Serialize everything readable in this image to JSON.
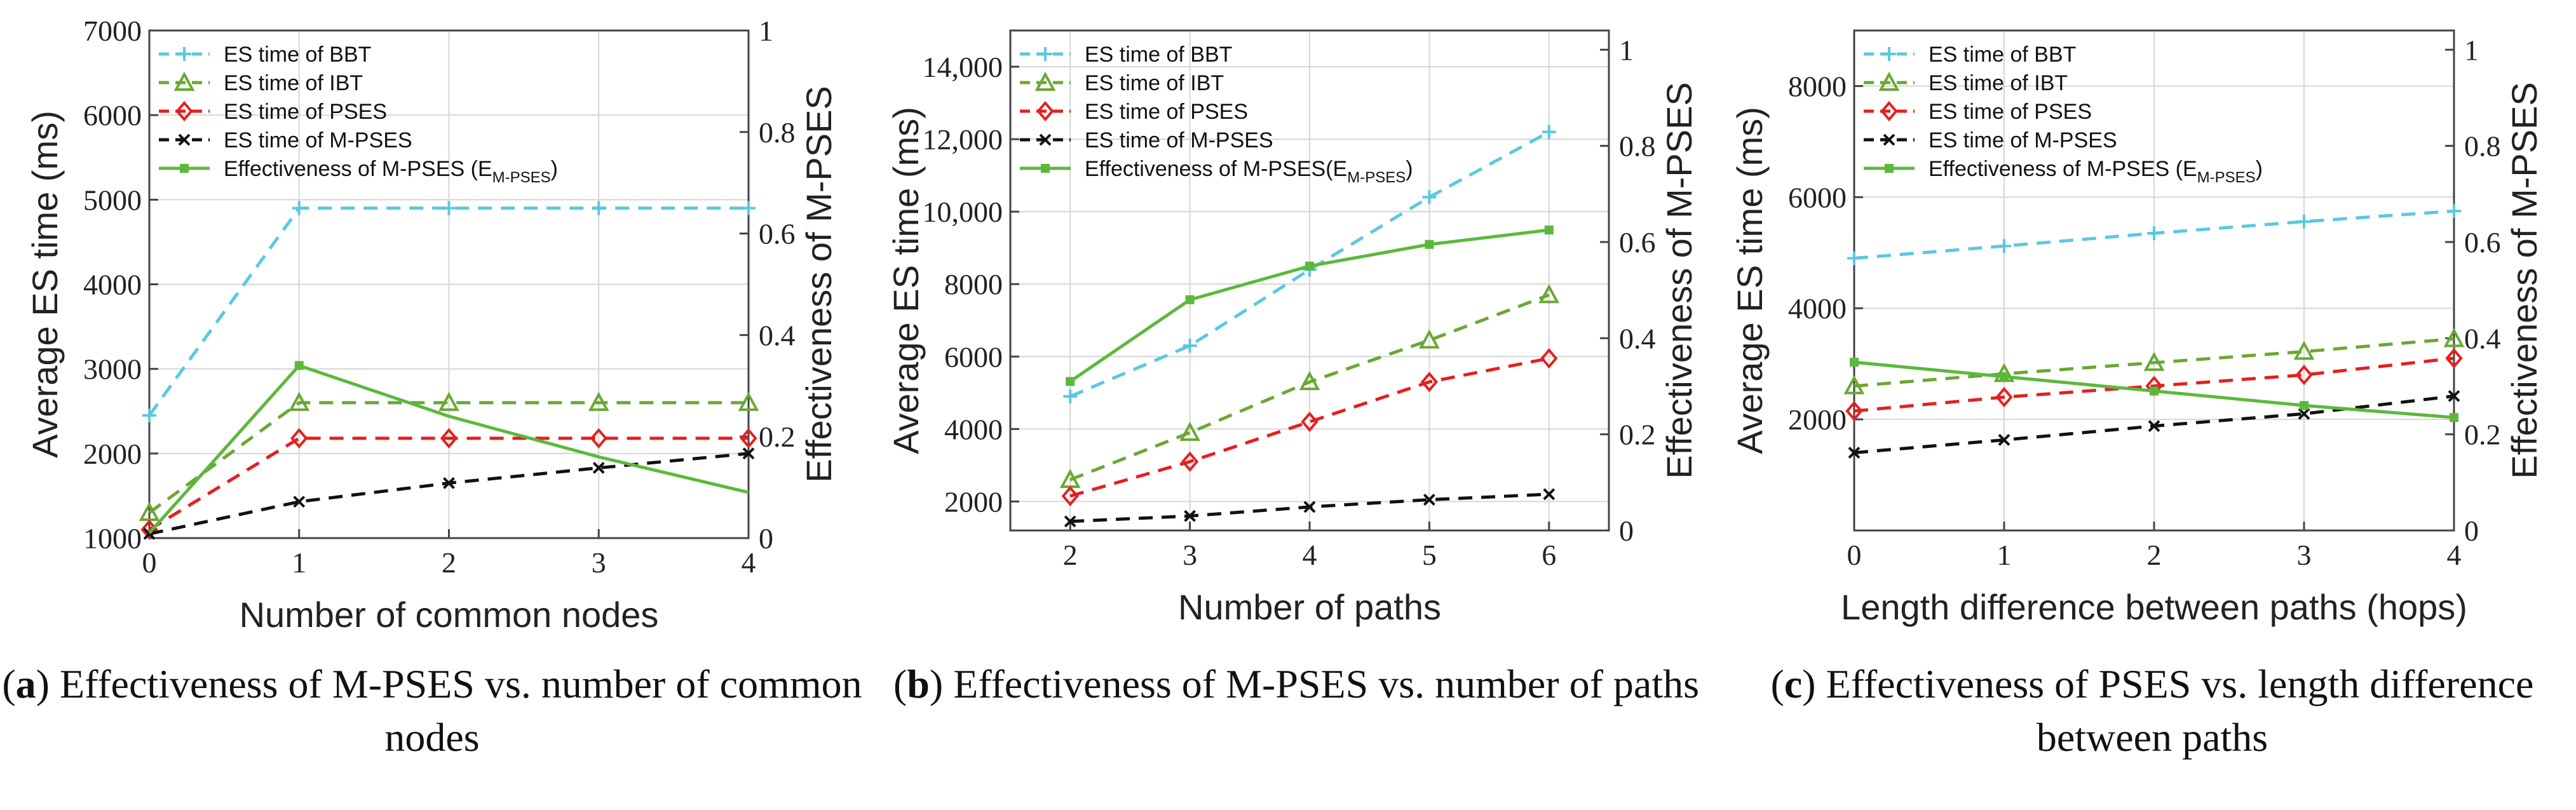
{
  "chart_data": [
    {
      "type": "line",
      "letter": "a",
      "caption": "Effectiveness of M-PSES vs. number of common nodes",
      "xlabel": "Number of common nodes",
      "ylabel": "Average ES time (ms)",
      "y2label": "Effectiveness of M-PSES",
      "x": [
        0,
        1,
        2,
        3,
        4
      ],
      "xticks": [
        "0",
        "1",
        "2",
        "3",
        "4"
      ],
      "xlim": [
        0,
        4
      ],
      "ylim": [
        1000,
        7000
      ],
      "yticks": [
        "1000",
        "2000",
        "3000",
        "4000",
        "5000",
        "6000",
        "7000"
      ],
      "ytick_values": [
        1000,
        2000,
        3000,
        4000,
        5000,
        6000,
        7000
      ],
      "y2lim": [
        0,
        1
      ],
      "y2ticks": [
        "0",
        "0.2",
        "0.4",
        "0.6",
        "0.8",
        "1"
      ],
      "y2tick_values": [
        0,
        0.2,
        0.4,
        0.6,
        0.8,
        1
      ],
      "grid": true,
      "legend": "top-left",
      "series": [
        {
          "name": "ES time of BBT",
          "values": [
            2450,
            4900,
            4900,
            4900,
            4900
          ],
          "color": "#5bc8e0",
          "dash": "dashed",
          "marker": "plus",
          "axis": "left"
        },
        {
          "name": "ES time of IBT",
          "values": [
            1300,
            2600,
            2600,
            2600,
            2600
          ],
          "color": "#6aa832",
          "dash": "dashed",
          "marker": "triangle",
          "axis": "left"
        },
        {
          "name": "ES time of PSES",
          "values": [
            1100,
            2180,
            2180,
            2180,
            2180
          ],
          "color": "#e51f1f",
          "dash": "dashed",
          "marker": "diamond",
          "axis": "left"
        },
        {
          "name": "ES time of M-PSES",
          "values": [
            1050,
            1430,
            1650,
            1830,
            2000
          ],
          "color": "#111111",
          "dash": "dashed",
          "marker": "x",
          "axis": "left"
        },
        {
          "name": "Effectiveness of M-PSES (E",
          "sub": "M-PSES",
          "suffix": ")",
          "values": [
            0.01,
            0.34,
            0.24,
            0.16,
            0.09
          ],
          "color": "#5cb83c",
          "dash": "solid",
          "marker": "square",
          "axis": "right",
          "marked": [
            false,
            true,
            false,
            false,
            false
          ]
        }
      ]
    },
    {
      "type": "line",
      "letter": "b",
      "caption": "Effectiveness of M-PSES vs. number of paths",
      "xlabel": "Number of paths",
      "ylabel": "Average ES time (ms)",
      "y2label": "Effectiveness of M-PSES",
      "x": [
        2,
        3,
        4,
        5,
        6
      ],
      "xticks": [
        "2",
        "3",
        "4",
        "5",
        "6"
      ],
      "xlim": [
        1.5,
        6.5
      ],
      "ylim": [
        1200,
        15000
      ],
      "yticks": [
        "2000",
        "4000",
        "6000",
        "8000",
        "10,000",
        "12,000",
        "14,000"
      ],
      "ytick_values": [
        2000,
        4000,
        6000,
        8000,
        10000,
        12000,
        14000
      ],
      "y2lim": [
        0,
        1.04
      ],
      "y2ticks": [
        "0",
        "0.2",
        "0.4",
        "0.6",
        "0.8",
        "1"
      ],
      "y2tick_values": [
        0,
        0.2,
        0.4,
        0.6,
        0.8,
        1
      ],
      "grid": true,
      "legend": "top-left",
      "series": [
        {
          "name": "ES time of BBT",
          "values": [
            4900,
            6300,
            8400,
            10400,
            12200
          ],
          "color": "#5bc8e0",
          "dash": "dashed",
          "marker": "plus",
          "axis": "left"
        },
        {
          "name": "ES time of IBT",
          "values": [
            2600,
            3900,
            5300,
            6450,
            7700
          ],
          "color": "#6aa832",
          "dash": "dashed",
          "marker": "triangle",
          "axis": "left"
        },
        {
          "name": "ES time of PSES",
          "values": [
            2150,
            3100,
            4200,
            5300,
            5950
          ],
          "color": "#e51f1f",
          "dash": "dashed",
          "marker": "diamond",
          "axis": "left"
        },
        {
          "name": "ES time of M-PSES",
          "values": [
            1450,
            1600,
            1850,
            2050,
            2200
          ],
          "color": "#111111",
          "dash": "dashed",
          "marker": "x",
          "axis": "left"
        },
        {
          "name": "Effectiveness of M-PSES(E",
          "sub": "M-PSES",
          "suffix": ")",
          "values": [
            0.31,
            0.48,
            0.55,
            0.595,
            0.625
          ],
          "color": "#5cb83c",
          "dash": "solid",
          "marker": "square",
          "axis": "right"
        }
      ]
    },
    {
      "type": "line",
      "letter": "c",
      "caption": "Effectiveness of PSES vs. length difference between paths",
      "xlabel": "Length difference between paths (hops)",
      "ylabel": "Average ES time (ms)",
      "y2label": "Effectiveness of M-PSES",
      "x": [
        0,
        1,
        2,
        3,
        4
      ],
      "xticks": [
        "0",
        "1",
        "2",
        "3",
        "4"
      ],
      "xlim": [
        0,
        4
      ],
      "ylim": [
        0,
        9000
      ],
      "yticks": [
        "2000",
        "4000",
        "6000",
        "8000"
      ],
      "ytick_values": [
        2000,
        4000,
        6000,
        8000
      ],
      "y2lim": [
        0,
        1.04
      ],
      "y2ticks": [
        "0",
        "0.2",
        "0.4",
        "0.6",
        "0.8",
        "1"
      ],
      "y2tick_values": [
        0,
        0.2,
        0.4,
        0.6,
        0.8,
        1
      ],
      "grid": true,
      "legend": "top-left",
      "series": [
        {
          "name": "ES time of BBT",
          "values": [
            4900,
            5120,
            5350,
            5560,
            5750
          ],
          "color": "#5bc8e0",
          "dash": "dashed",
          "marker": "plus",
          "axis": "left"
        },
        {
          "name": "ES time of IBT",
          "values": [
            2600,
            2820,
            3020,
            3220,
            3450
          ],
          "color": "#6aa832",
          "dash": "dashed",
          "marker": "triangle",
          "axis": "left"
        },
        {
          "name": "ES time of PSES",
          "values": [
            2150,
            2400,
            2600,
            2800,
            3100
          ],
          "color": "#e51f1f",
          "dash": "dashed",
          "marker": "diamond",
          "axis": "left"
        },
        {
          "name": "ES time of M-PSES",
          "values": [
            1400,
            1630,
            1880,
            2100,
            2420
          ],
          "color": "#111111",
          "dash": "dashed",
          "marker": "x",
          "axis": "left"
        },
        {
          "name": "Effectiveness of M-PSES (E",
          "sub": "M-PSES",
          "suffix": ")",
          "values": [
            0.35,
            0.32,
            0.29,
            0.26,
            0.235
          ],
          "color": "#5cb83c",
          "dash": "solid",
          "marker": "square",
          "axis": "right"
        }
      ]
    }
  ]
}
